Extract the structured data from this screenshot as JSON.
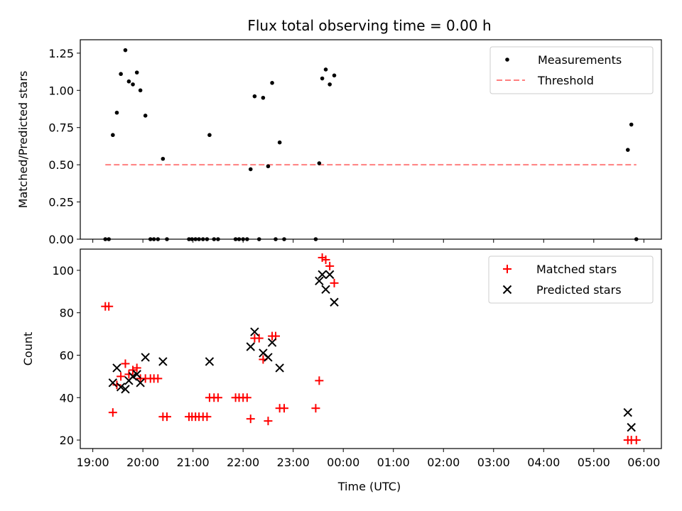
{
  "title": "Flux total observing time = 0.00 h",
  "xlabel": "Time (UTC)",
  "colors": {
    "measure": "#000000",
    "threshold": "#ff7f7f",
    "matched": "#ff0000",
    "predicted": "#000000"
  },
  "chart_data": [
    {
      "type": "scatter",
      "ylabel": "Matched/Predicted stars",
      "xlim": [
        18.75,
        30.35
      ],
      "ylim": [
        0,
        1.34
      ],
      "yticks": [
        "0.00",
        "0.25",
        "0.50",
        "0.75",
        "1.00",
        "1.25"
      ],
      "ytick_values": [
        0,
        0.25,
        0.5,
        0.75,
        1.0,
        1.25
      ],
      "legend": {
        "position": "upper right",
        "entries": [
          "Measurements",
          "Threshold"
        ]
      },
      "threshold": {
        "name": "Threshold",
        "x": [
          19.25,
          29.85
        ],
        "y": 0.5
      },
      "series": [
        {
          "name": "Measurements",
          "points": [
            [
              19.25,
              0
            ],
            [
              19.32,
              0
            ],
            [
              19.4,
              0.7
            ],
            [
              19.48,
              0.85
            ],
            [
              19.56,
              1.11
            ],
            [
              19.65,
              1.27
            ],
            [
              19.72,
              1.06
            ],
            [
              19.8,
              1.04
            ],
            [
              19.88,
              1.12
            ],
            [
              19.95,
              1.0
            ],
            [
              20.05,
              0.83
            ],
            [
              20.15,
              0
            ],
            [
              20.22,
              0
            ],
            [
              20.3,
              0
            ],
            [
              20.4,
              0.54
            ],
            [
              20.48,
              0
            ],
            [
              20.92,
              0
            ],
            [
              20.98,
              0
            ],
            [
              21.05,
              0
            ],
            [
              21.12,
              0
            ],
            [
              21.2,
              0
            ],
            [
              21.28,
              0
            ],
            [
              21.33,
              0.7
            ],
            [
              21.42,
              0
            ],
            [
              21.5,
              0
            ],
            [
              21.85,
              0
            ],
            [
              21.92,
              0
            ],
            [
              22.0,
              0
            ],
            [
              22.08,
              0
            ],
            [
              22.15,
              0.47
            ],
            [
              22.23,
              0.96
            ],
            [
              22.32,
              0
            ],
            [
              22.4,
              0.95
            ],
            [
              22.5,
              0.49
            ],
            [
              22.58,
              1.05
            ],
            [
              22.65,
              0
            ],
            [
              22.73,
              0.65
            ],
            [
              22.82,
              0
            ],
            [
              23.45,
              0
            ],
            [
              23.52,
              0.51
            ],
            [
              23.58,
              1.08
            ],
            [
              23.65,
              1.14
            ],
            [
              23.73,
              1.04
            ],
            [
              23.82,
              1.1
            ],
            [
              29.68,
              0.6
            ],
            [
              29.75,
              0.77
            ],
            [
              29.85,
              0
            ]
          ]
        }
      ]
    },
    {
      "type": "scatter",
      "ylabel": "Count",
      "xlim": [
        18.75,
        30.35
      ],
      "ylim": [
        16,
        110
      ],
      "yticks": [
        "20",
        "40",
        "60",
        "80",
        "100"
      ],
      "ytick_values": [
        20,
        40,
        60,
        80,
        100
      ],
      "xticks": [
        "19:00",
        "20:00",
        "21:00",
        "22:00",
        "23:00",
        "00:00",
        "01:00",
        "02:00",
        "03:00",
        "04:00",
        "05:00",
        "06:00"
      ],
      "xtick_values": [
        19,
        20,
        21,
        22,
        23,
        24,
        25,
        26,
        27,
        28,
        29,
        30
      ],
      "legend": {
        "position": "upper right",
        "entries": [
          "Matched stars",
          "Predicted stars"
        ]
      },
      "series": [
        {
          "name": "Matched stars",
          "marker": "plus",
          "points": [
            [
              19.25,
              83
            ],
            [
              19.32,
              83
            ],
            [
              19.4,
              33
            ],
            [
              19.48,
              46
            ],
            [
              19.56,
              50
            ],
            [
              19.65,
              56
            ],
            [
              19.72,
              51
            ],
            [
              19.8,
              53
            ],
            [
              19.88,
              54
            ],
            [
              19.95,
              49
            ],
            [
              20.05,
              49
            ],
            [
              20.15,
              49
            ],
            [
              20.22,
              49
            ],
            [
              20.3,
              49
            ],
            [
              20.4,
              31
            ],
            [
              20.48,
              31
            ],
            [
              20.92,
              31
            ],
            [
              20.98,
              31
            ],
            [
              21.05,
              31
            ],
            [
              21.12,
              31
            ],
            [
              21.2,
              31
            ],
            [
              21.28,
              31
            ],
            [
              21.33,
              40
            ],
            [
              21.42,
              40
            ],
            [
              21.5,
              40
            ],
            [
              21.85,
              40
            ],
            [
              21.92,
              40
            ],
            [
              22.0,
              40
            ],
            [
              22.08,
              40
            ],
            [
              22.15,
              30
            ],
            [
              22.23,
              68
            ],
            [
              22.32,
              68
            ],
            [
              22.4,
              58
            ],
            [
              22.5,
              29
            ],
            [
              22.58,
              69
            ],
            [
              22.65,
              69
            ],
            [
              22.73,
              35
            ],
            [
              22.82,
              35
            ],
            [
              23.45,
              35
            ],
            [
              23.52,
              48
            ],
            [
              23.58,
              106
            ],
            [
              23.65,
              105
            ],
            [
              23.73,
              102
            ],
            [
              23.82,
              94
            ],
            [
              29.68,
              20
            ],
            [
              29.75,
              20
            ],
            [
              29.85,
              20
            ]
          ]
        },
        {
          "name": "Predicted stars",
          "marker": "x",
          "points": [
            [
              19.4,
              47
            ],
            [
              19.48,
              54
            ],
            [
              19.56,
              45
            ],
            [
              19.65,
              44
            ],
            [
              19.72,
              48
            ],
            [
              19.8,
              50
            ],
            [
              19.88,
              51
            ],
            [
              19.95,
              47
            ],
            [
              20.05,
              59
            ],
            [
              20.4,
              57
            ],
            [
              21.33,
              57
            ],
            [
              22.15,
              64
            ],
            [
              22.23,
              71
            ],
            [
              22.4,
              61
            ],
            [
              22.5,
              59
            ],
            [
              22.58,
              66
            ],
            [
              22.73,
              54
            ],
            [
              23.52,
              95
            ],
            [
              23.58,
              98
            ],
            [
              23.65,
              91
            ],
            [
              23.73,
              98
            ],
            [
              23.82,
              85
            ],
            [
              29.68,
              33
            ],
            [
              29.75,
              26
            ]
          ]
        }
      ]
    }
  ]
}
